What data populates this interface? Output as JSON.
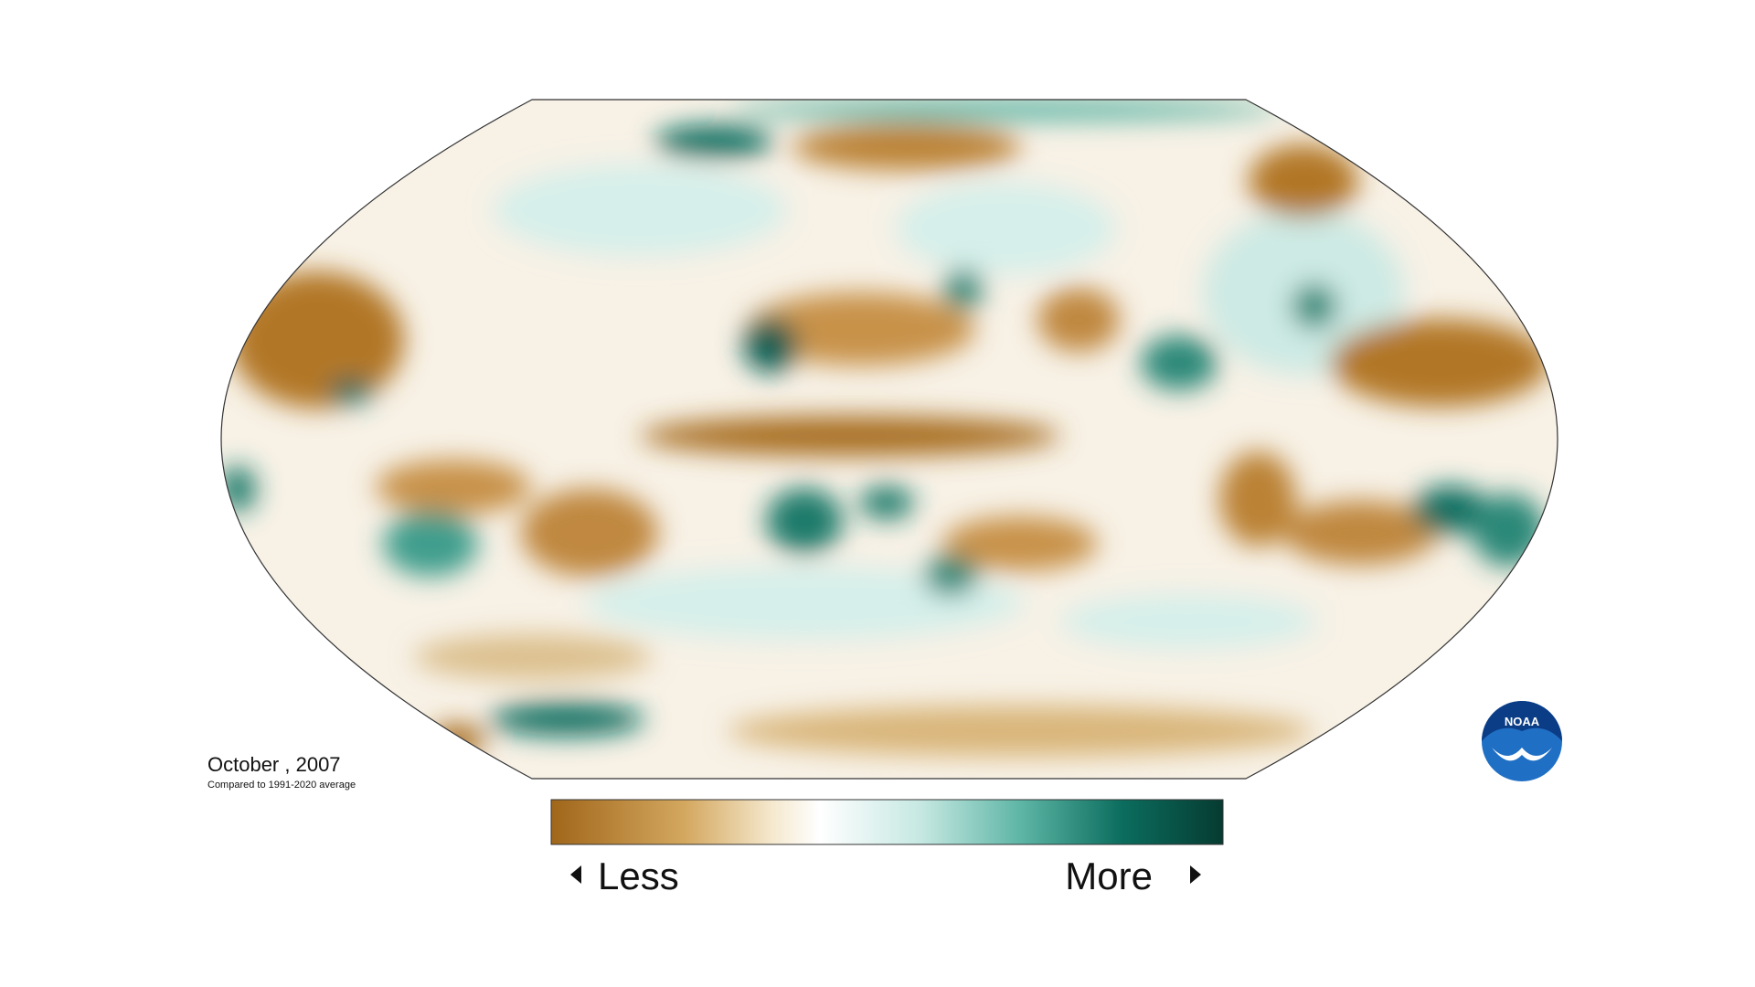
{
  "title": "October , 2007",
  "subtitle": "Compared to 1991-2020 average",
  "legend": {
    "low_label": "Less",
    "high_label": "More"
  },
  "logo": "NOAA"
}
